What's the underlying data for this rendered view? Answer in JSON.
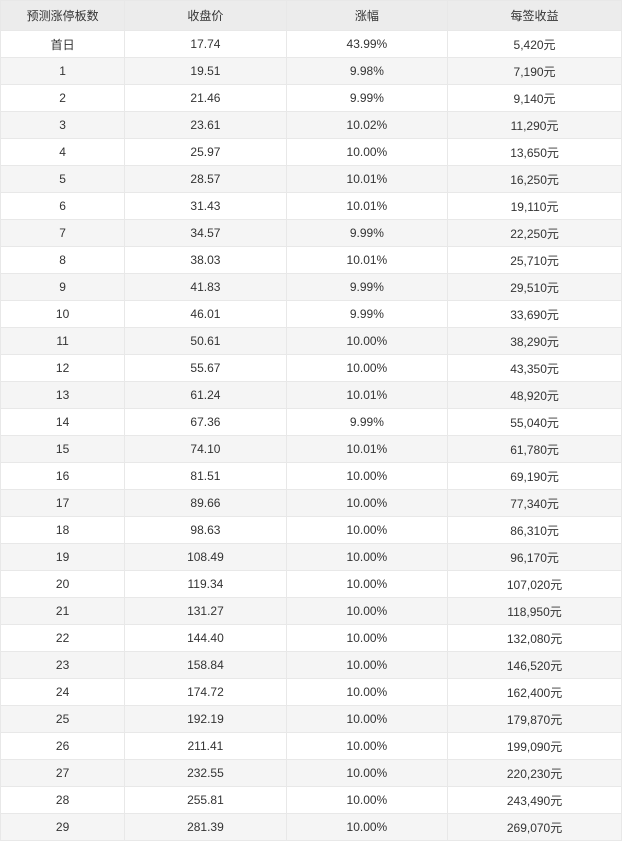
{
  "table": {
    "type": "table",
    "background_color": "#ffffff",
    "header_bg": "#ececec",
    "row_odd_bg": "#f5f5f5",
    "row_even_bg": "#ffffff",
    "border_color": "#e8e8e8",
    "text_color": "#333333",
    "font_size_pt": 9,
    "columns": [
      {
        "label": "预测涨停板数",
        "width_pct": 20,
        "align": "center"
      },
      {
        "label": "收盘价",
        "width_pct": 26,
        "align": "center"
      },
      {
        "label": "涨幅",
        "width_pct": 26,
        "align": "center"
      },
      {
        "label": "每签收益",
        "width_pct": 28,
        "align": "center"
      }
    ],
    "rows": [
      [
        "首日",
        "17.74",
        "43.99%",
        "5,420元"
      ],
      [
        "1",
        "19.51",
        "9.98%",
        "7,190元"
      ],
      [
        "2",
        "21.46",
        "9.99%",
        "9,140元"
      ],
      [
        "3",
        "23.61",
        "10.02%",
        "11,290元"
      ],
      [
        "4",
        "25.97",
        "10.00%",
        "13,650元"
      ],
      [
        "5",
        "28.57",
        "10.01%",
        "16,250元"
      ],
      [
        "6",
        "31.43",
        "10.01%",
        "19,110元"
      ],
      [
        "7",
        "34.57",
        "9.99%",
        "22,250元"
      ],
      [
        "8",
        "38.03",
        "10.01%",
        "25,710元"
      ],
      [
        "9",
        "41.83",
        "9.99%",
        "29,510元"
      ],
      [
        "10",
        "46.01",
        "9.99%",
        "33,690元"
      ],
      [
        "11",
        "50.61",
        "10.00%",
        "38,290元"
      ],
      [
        "12",
        "55.67",
        "10.00%",
        "43,350元"
      ],
      [
        "13",
        "61.24",
        "10.01%",
        "48,920元"
      ],
      [
        "14",
        "67.36",
        "9.99%",
        "55,040元"
      ],
      [
        "15",
        "74.10",
        "10.01%",
        "61,780元"
      ],
      [
        "16",
        "81.51",
        "10.00%",
        "69,190元"
      ],
      [
        "17",
        "89.66",
        "10.00%",
        "77,340元"
      ],
      [
        "18",
        "98.63",
        "10.00%",
        "86,310元"
      ],
      [
        "19",
        "108.49",
        "10.00%",
        "96,170元"
      ],
      [
        "20",
        "119.34",
        "10.00%",
        "107,020元"
      ],
      [
        "21",
        "131.27",
        "10.00%",
        "118,950元"
      ],
      [
        "22",
        "144.40",
        "10.00%",
        "132,080元"
      ],
      [
        "23",
        "158.84",
        "10.00%",
        "146,520元"
      ],
      [
        "24",
        "174.72",
        "10.00%",
        "162,400元"
      ],
      [
        "25",
        "192.19",
        "10.00%",
        "179,870元"
      ],
      [
        "26",
        "211.41",
        "10.00%",
        "199,090元"
      ],
      [
        "27",
        "232.55",
        "10.00%",
        "220,230元"
      ],
      [
        "28",
        "255.81",
        "10.00%",
        "243,490元"
      ],
      [
        "29",
        "281.39",
        "10.00%",
        "269,070元"
      ]
    ]
  }
}
